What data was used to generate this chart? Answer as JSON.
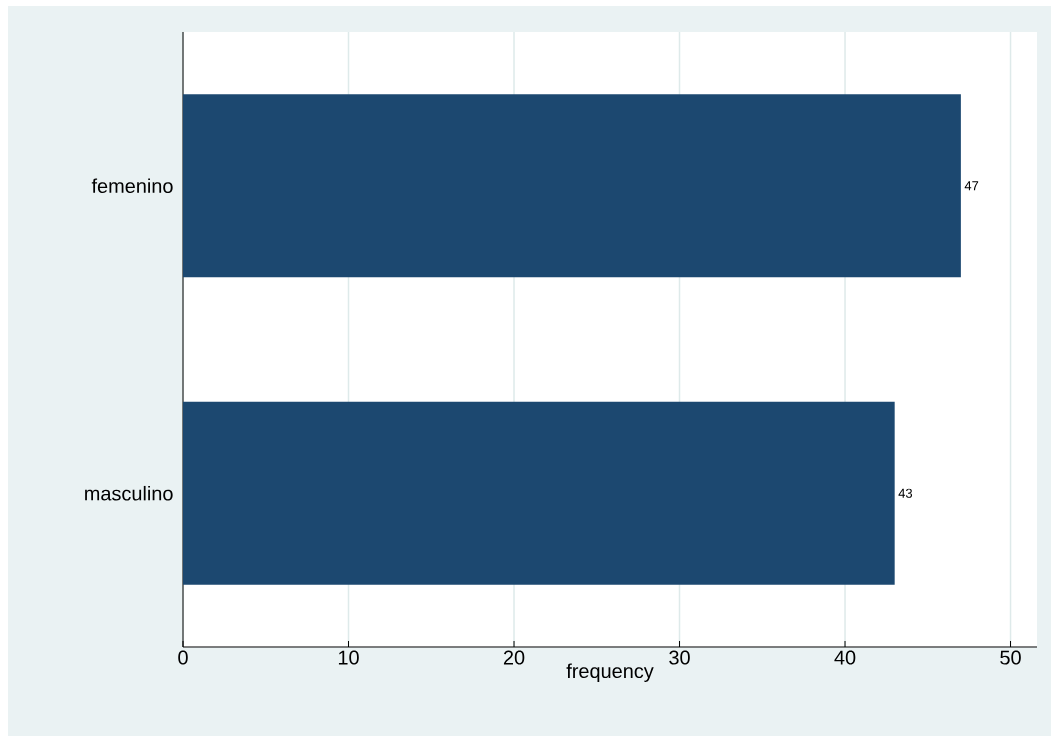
{
  "chart_data": {
    "type": "bar",
    "orientation": "horizontal",
    "xlabel": "frequency",
    "categories": [
      "femenino",
      "masculino"
    ],
    "values": [
      47,
      43
    ],
    "color": "#1c4870",
    "xlim": [
      0,
      51.6
    ],
    "xticks": [
      0,
      10,
      20,
      30,
      40,
      50
    ],
    "grid": "x",
    "data_labels": true
  }
}
